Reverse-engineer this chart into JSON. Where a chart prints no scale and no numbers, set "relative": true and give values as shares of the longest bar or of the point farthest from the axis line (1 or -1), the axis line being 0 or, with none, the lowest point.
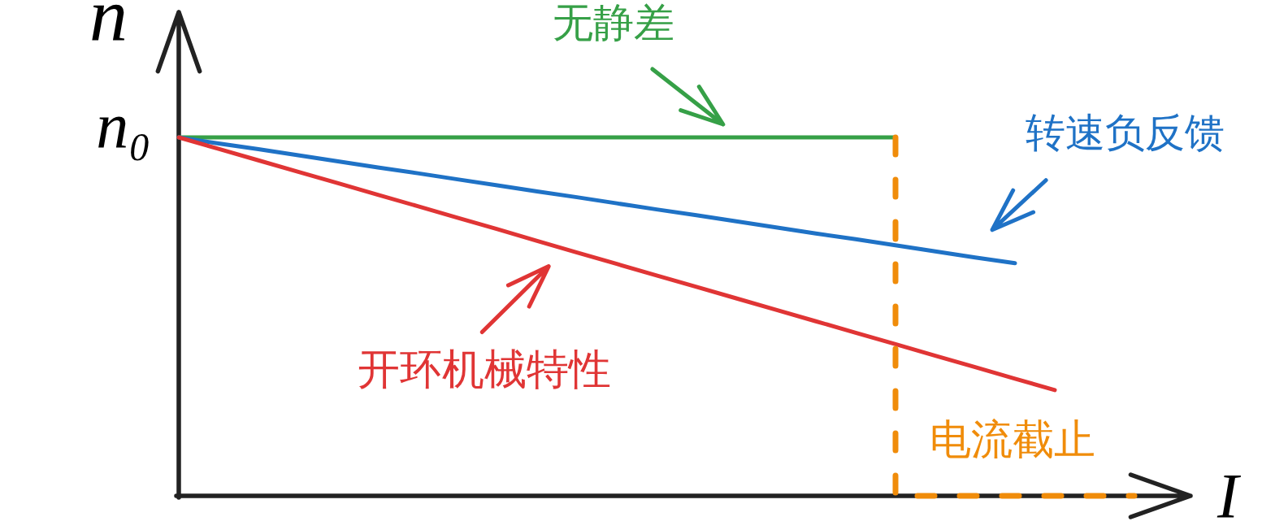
{
  "chart_data": {
    "type": "line",
    "relative": true,
    "xlabel": "I",
    "ylabel": "n",
    "line_style": "solid",
    "categories": [
      null,
      null,
      null,
      null,
      null,
      null,
      null,
      null,
      null,
      null,
      null,
      null,
      null,
      null,
      null,
      null,
      null,
      null,
      null,
      null,
      null,
      null,
      null,
      null,
      null
    ],
    "annotations": [
      "n₀"
    ],
    "series": [
      {
        "name": "无静差",
        "color": "#36a047",
        "values": [
          1,
          1,
          1,
          1,
          1,
          1,
          1,
          1,
          1,
          1,
          1,
          1,
          1,
          1,
          1,
          1,
          1,
          1,
          1,
          null,
          null,
          null,
          null,
          null,
          null
        ]
      },
      {
        "name": "转速负反馈",
        "color": "#1f72c6",
        "values": [
          1,
          0.983,
          0.967,
          0.95,
          0.933,
          0.916,
          0.9,
          0.883,
          0.866,
          0.849,
          0.833,
          0.816,
          0.799,
          0.783,
          0.766,
          0.749,
          0.732,
          0.716,
          0.699,
          0.682,
          0.665,
          0.649,
          null,
          null,
          null
        ]
      },
      {
        "name": "开环机械特性",
        "color": "#e03535",
        "values": [
          1,
          0.968,
          0.936,
          0.904,
          0.872,
          0.84,
          0.808,
          0.776,
          0.744,
          0.711,
          0.679,
          0.647,
          0.615,
          0.583,
          0.551,
          0.519,
          0.487,
          0.455,
          0.423,
          0.391,
          0.359,
          0.327,
          0.295,
          null,
          null
        ]
      },
      {
        "name": "电流截止",
        "color": "#f08c0a",
        "type": "step",
        "line_style": "dashed",
        "values": [
          null,
          null,
          null,
          null,
          null,
          null,
          null,
          null,
          null,
          null,
          null,
          null,
          null,
          null,
          null,
          null,
          null,
          null,
          1,
          0,
          0,
          0,
          0,
          0,
          0
        ]
      }
    ]
  }
}
